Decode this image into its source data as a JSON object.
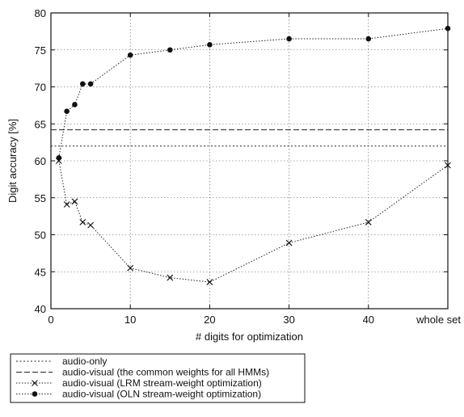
{
  "chart_data": {
    "type": "line",
    "title": "",
    "xlabel": "# digits for optimization",
    "ylabel": "Digit accuracy [%]",
    "ylim": [
      40,
      80
    ],
    "xlim": [
      0,
      50
    ],
    "grid": true,
    "legend_position": "bottom",
    "x_ticks": [
      0,
      10,
      20,
      30,
      40,
      50
    ],
    "x_tick_labels": [
      "0",
      "10",
      "20",
      "30",
      "40",
      "whole set"
    ],
    "y_ticks": [
      40,
      45,
      50,
      55,
      60,
      65,
      70,
      75,
      80
    ],
    "y_tick_labels": [
      "40",
      "45",
      "50",
      "55",
      "60",
      "65",
      "70",
      "75",
      "80"
    ],
    "series": [
      {
        "name": "audio-only",
        "style": "dotted",
        "marker": "none",
        "kind": "constant",
        "x": [
          0,
          50
        ],
        "y": [
          62.0,
          62.0
        ]
      },
      {
        "name": "audio-visual (the common weights for all HMMs)",
        "style": "dashed",
        "marker": "none",
        "kind": "constant",
        "x": [
          0,
          50
        ],
        "y": [
          64.2,
          64.2
        ]
      },
      {
        "name": "audio-visual (LRM stream-weight optimization)",
        "style": "dotted-line",
        "marker": "x",
        "kind": "curve",
        "x": [
          1,
          2,
          3,
          4,
          5,
          10,
          15,
          20,
          30,
          40,
          50
        ],
        "y": [
          60.0,
          54.1,
          54.5,
          51.7,
          51.3,
          45.5,
          44.2,
          43.6,
          48.9,
          51.7,
          59.4
        ]
      },
      {
        "name": "audio-visual (OLN stream-weight optimization)",
        "style": "dotted-line",
        "marker": "dot",
        "kind": "curve",
        "x": [
          1,
          2,
          3,
          4,
          5,
          10,
          15,
          20,
          30,
          40,
          50
        ],
        "y": [
          60.4,
          66.7,
          67.6,
          70.4,
          70.4,
          74.3,
          75.0,
          75.7,
          76.5,
          76.5,
          77.9
        ]
      }
    ]
  }
}
